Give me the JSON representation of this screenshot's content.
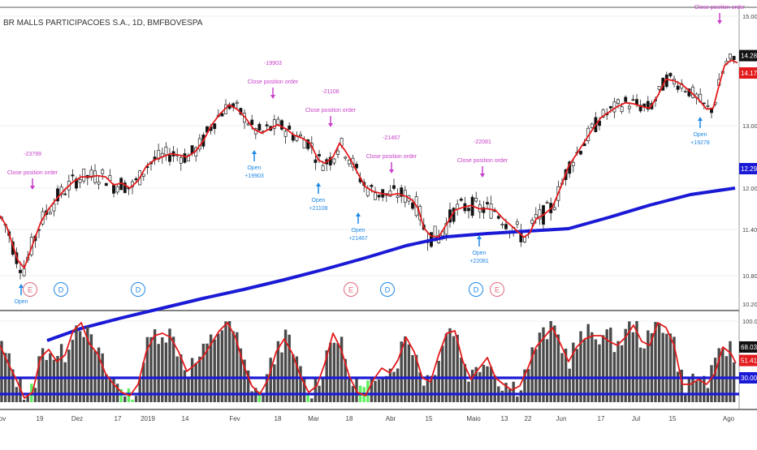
{
  "title": "BR MALLS PARTICIPACOES S.A., 1D, BMFBOVESPA",
  "colors": {
    "price_line": "#e31a1c",
    "ma_line": "#1a1ad6",
    "osc_line": "#e31a1c",
    "bar_dark": "#4a4a4a",
    "bar_green": "#5ef05e",
    "signal_close": "#c840c8",
    "signal_open": "#1e88e5",
    "last_black": "#111111",
    "last_red": "#e31a1c",
    "last_blue": "#1a1ad6"
  },
  "chart_data": [
    {
      "type": "line",
      "panel": "price",
      "series": [
        {
          "kind": "moving-average",
          "points": [
            [
              58,
              420
            ],
            [
              100,
              405
            ],
            [
              150,
              392
            ],
            [
              200,
              380
            ],
            [
              250,
              368
            ],
            [
              300,
              357
            ],
            [
              350,
              345
            ],
            [
              400,
              332
            ],
            [
              450,
              318
            ],
            [
              500,
              303
            ],
            [
              550,
              292
            ],
            [
              600,
              288
            ],
            [
              650,
              285
            ],
            [
              700,
              282
            ],
            [
              750,
              268
            ],
            [
              800,
              253
            ],
            [
              850,
              240
            ],
            [
              905,
              232
            ]
          ]
        },
        {
          "kind": "price-average",
          "points": [
            [
              0,
              11.6
            ],
            [
              8,
              11.45
            ],
            [
              15,
              11.22
            ],
            [
              22,
              11.0
            ],
            [
              30,
              10.9
            ],
            [
              40,
              11.2
            ],
            [
              50,
              11.5
            ],
            [
              60,
              11.7
            ],
            [
              70,
              11.85
            ],
            [
              80,
              11.98
            ],
            [
              90,
              12.1
            ],
            [
              100,
              12.18
            ],
            [
              110,
              12.18
            ],
            [
              120,
              12.2
            ],
            [
              130,
              12.18
            ],
            [
              140,
              12.05
            ],
            [
              150,
              12.08
            ],
            [
              160,
              12.0
            ],
            [
              170,
              12.12
            ],
            [
              180,
              12.35
            ],
            [
              190,
              12.45
            ],
            [
              200,
              12.5
            ],
            [
              210,
              12.55
            ],
            [
              220,
              12.53
            ],
            [
              230,
              12.5
            ],
            [
              240,
              12.58
            ],
            [
              250,
              12.75
            ],
            [
              260,
              13.0
            ],
            [
              270,
              13.2
            ],
            [
              282,
              13.38
            ],
            [
              292,
              13.3
            ],
            [
              302,
              13.15
            ],
            [
              312,
              12.95
            ],
            [
              322,
              12.88
            ],
            [
              332,
              12.95
            ],
            [
              342,
              13.02
            ],
            [
              352,
              12.95
            ],
            [
              362,
              12.85
            ],
            [
              372,
              12.8
            ],
            [
              382,
              12.72
            ],
            [
              392,
              12.45
            ],
            [
              400,
              12.4
            ],
            [
              410,
              12.5
            ],
            [
              418,
              12.72
            ],
            [
              425,
              12.6
            ],
            [
              432,
              12.45
            ],
            [
              440,
              12.25
            ],
            [
              450,
              12.02
            ],
            [
              460,
              11.95
            ],
            [
              470,
              11.92
            ],
            [
              480,
              11.9
            ],
            [
              490,
              11.92
            ],
            [
              500,
              11.88
            ],
            [
              508,
              11.82
            ],
            [
              515,
              11.7
            ],
            [
              522,
              11.42
            ],
            [
              530,
              11.32
            ],
            [
              540,
              11.3
            ],
            [
              550,
              11.48
            ],
            [
              560,
              11.68
            ],
            [
              570,
              11.72
            ],
            [
              580,
              11.75
            ],
            [
              590,
              11.7
            ],
            [
              600,
              11.7
            ],
            [
              610,
              11.68
            ],
            [
              620,
              11.55
            ],
            [
              630,
              11.45
            ],
            [
              645,
              11.3
            ],
            [
              652,
              11.35
            ],
            [
              660,
              11.55
            ],
            [
              670,
              11.62
            ],
            [
              680,
              11.72
            ],
            [
              690,
              12.0
            ],
            [
              700,
              12.35
            ],
            [
              710,
              12.55
            ],
            [
              720,
              12.75
            ],
            [
              730,
              12.95
            ],
            [
              740,
              13.15
            ],
            [
              750,
              13.25
            ],
            [
              760,
              13.35
            ],
            [
              770,
              13.42
            ],
            [
              780,
              13.4
            ],
            [
              790,
              13.35
            ],
            [
              800,
              13.32
            ],
            [
              810,
              13.55
            ],
            [
              820,
              13.85
            ],
            [
              830,
              13.82
            ],
            [
              840,
              13.75
            ],
            [
              850,
              13.62
            ],
            [
              860,
              13.48
            ],
            [
              870,
              13.3
            ],
            [
              878,
              13.32
            ],
            [
              885,
              13.72
            ],
            [
              892,
              14.1
            ],
            [
              900,
              14.2
            ],
            [
              908,
              14.15
            ]
          ]
        }
      ],
      "price_axis": {
        "ticks": [
          "15.00",
          "13.00",
          "12.00",
          "11.40",
          "10.80",
          "10.20"
        ],
        "labels": {
          "last_close": "14.28",
          "price_average_last": "14.17",
          "ma_last": "12.29"
        }
      }
    },
    {
      "type": "bar",
      "panel": "oscillator",
      "oscillator_line": [
        [
          0,
          70
        ],
        [
          10,
          48
        ],
        [
          20,
          28
        ],
        [
          30,
          5
        ],
        [
          40,
          12
        ],
        [
          50,
          55
        ],
        [
          60,
          65
        ],
        [
          70,
          50
        ],
        [
          80,
          58
        ],
        [
          90,
          88
        ],
        [
          100,
          98
        ],
        [
          110,
          72
        ],
        [
          120,
          60
        ],
        [
          130,
          35
        ],
        [
          140,
          22
        ],
        [
          150,
          12
        ],
        [
          160,
          8
        ],
        [
          170,
          22
        ],
        [
          180,
          62
        ],
        [
          190,
          82
        ],
        [
          200,
          85
        ],
        [
          210,
          80
        ],
        [
          220,
          62
        ],
        [
          230,
          38
        ],
        [
          240,
          46
        ],
        [
          250,
          56
        ],
        [
          260,
          72
        ],
        [
          270,
          88
        ],
        [
          280,
          98
        ],
        [
          290,
          80
        ],
        [
          300,
          45
        ],
        [
          310,
          20
        ],
        [
          320,
          10
        ],
        [
          330,
          28
        ],
        [
          340,
          62
        ],
        [
          350,
          78
        ],
        [
          360,
          60
        ],
        [
          370,
          32
        ],
        [
          380,
          12
        ],
        [
          390,
          20
        ],
        [
          400,
          48
        ],
        [
          410,
          85
        ],
        [
          420,
          65
        ],
        [
          430,
          32
        ],
        [
          440,
          12
        ],
        [
          450,
          8
        ],
        [
          460,
          28
        ],
        [
          470,
          42
        ],
        [
          480,
          36
        ],
        [
          490,
          52
        ],
        [
          500,
          80
        ],
        [
          510,
          62
        ],
        [
          520,
          30
        ],
        [
          530,
          25
        ],
        [
          540,
          58
        ],
        [
          550,
          85
        ],
        [
          560,
          88
        ],
        [
          570,
          50
        ],
        [
          580,
          28
        ],
        [
          590,
          42
        ],
        [
          600,
          55
        ],
        [
          610,
          30
        ],
        [
          620,
          22
        ],
        [
          630,
          15
        ],
        [
          640,
          20
        ],
        [
          650,
          42
        ],
        [
          660,
          68
        ],
        [
          670,
          80
        ],
        [
          680,
          92
        ],
        [
          690,
          72
        ],
        [
          700,
          50
        ],
        [
          710,
          68
        ],
        [
          720,
          78
        ],
        [
          730,
          82
        ],
        [
          740,
          82
        ],
        [
          750,
          75
        ],
        [
          760,
          70
        ],
        [
          770,
          80
        ],
        [
          780,
          95
        ],
        [
          790,
          75
        ],
        [
          800,
          70
        ],
        [
          810,
          98
        ],
        [
          820,
          92
        ],
        [
          830,
          70
        ],
        [
          840,
          22
        ],
        [
          850,
          22
        ],
        [
          860,
          28
        ],
        [
          870,
          22
        ],
        [
          880,
          35
        ],
        [
          890,
          68
        ],
        [
          900,
          60
        ],
        [
          906,
          48
        ]
      ],
      "axis": {
        "ticks": [
          "100.00",
          "30.00"
        ],
        "labels": {
          "osc_a": "68.03",
          "osc_b": "51.41",
          "level_low": "30.00"
        }
      },
      "levels": [
        30,
        10
      ]
    }
  ],
  "signals": [
    {
      "id": "close-1",
      "type": "close",
      "value": "-23799",
      "label": "Close position order"
    },
    {
      "id": "close-2",
      "type": "close",
      "value": "-19903",
      "label": "Close position order"
    },
    {
      "id": "close-3",
      "type": "close",
      "value": "-21108",
      "label": "Close position order"
    },
    {
      "id": "close-4",
      "type": "close",
      "value": "-21467",
      "label": "Close position order"
    },
    {
      "id": "close-5",
      "type": "close",
      "value": "-22081",
      "label": "Close position order"
    },
    {
      "id": "close-6",
      "type": "close",
      "value": "",
      "label": "Close position order"
    },
    {
      "id": "open-1",
      "type": "open",
      "label": "Open",
      "value": ""
    },
    {
      "id": "open-2",
      "type": "open",
      "label": "Open",
      "value": "+19903"
    },
    {
      "id": "open-3",
      "type": "open",
      "label": "Open",
      "value": "+21108"
    },
    {
      "id": "open-4",
      "type": "open",
      "label": "Open",
      "value": "+21467"
    },
    {
      "id": "open-5",
      "type": "open",
      "label": "Open",
      "value": "+22081"
    },
    {
      "id": "open-6",
      "type": "open",
      "label": "Open",
      "value": "+19278"
    }
  ],
  "events": [
    {
      "letter": "E",
      "kind": "earnings"
    },
    {
      "letter": "D",
      "kind": "dividend"
    },
    {
      "letter": "D",
      "kind": "dividend"
    },
    {
      "letter": "E",
      "kind": "earnings"
    },
    {
      "letter": "D",
      "kind": "dividend"
    },
    {
      "letter": "D",
      "kind": "dividend"
    },
    {
      "letter": "E",
      "kind": "earnings"
    }
  ],
  "x_axis": {
    "labels": [
      "ov",
      "19",
      "Dez",
      "17",
      "2019",
      "14",
      "Fev",
      "18",
      "Mar",
      "18",
      "Abr",
      "15",
      "Maio",
      "13",
      "22",
      "Jun",
      "17",
      "Jul",
      "15",
      "Ago"
    ]
  }
}
